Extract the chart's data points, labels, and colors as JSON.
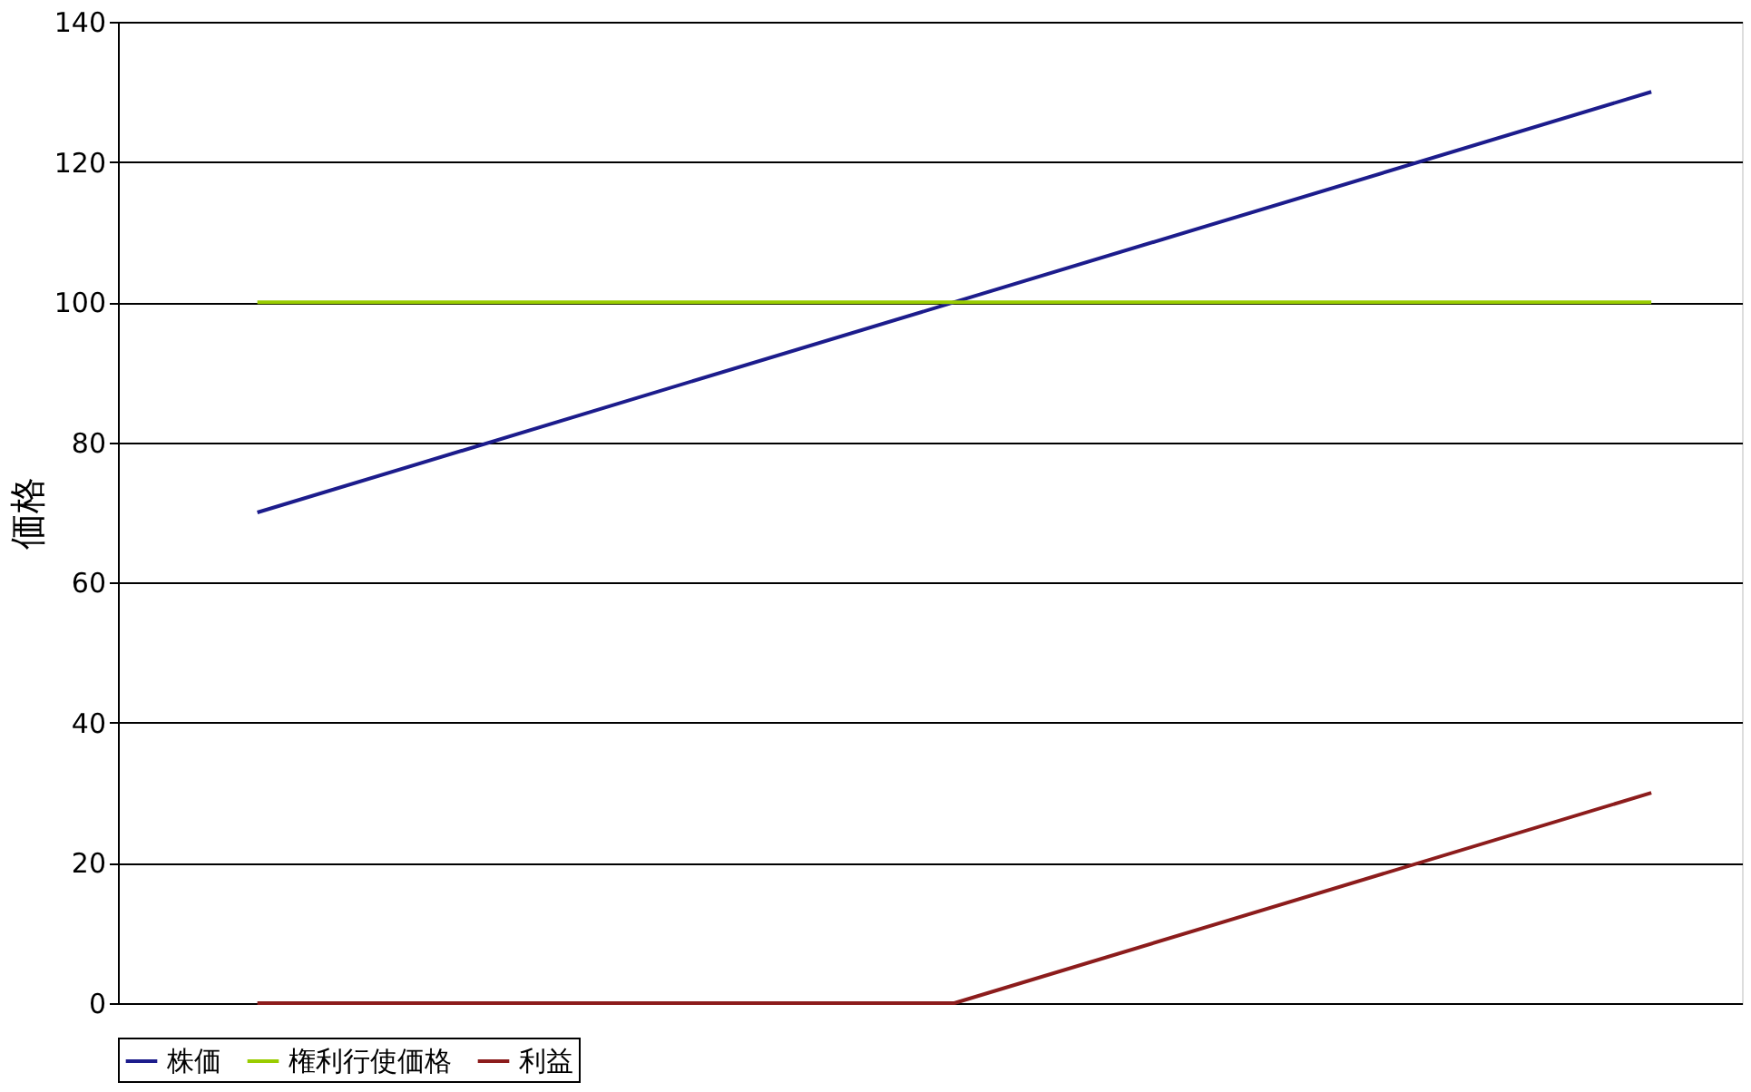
{
  "chart_data": {
    "type": "line",
    "ylabel": "価格",
    "categories": [
      null,
      null,
      null
    ],
    "series": [
      {
        "name": "株価",
        "color": "#1c1c8c",
        "values": [
          70,
          100,
          130
        ]
      },
      {
        "name": "権利行使価格",
        "color": "#99cc00",
        "values": [
          100,
          100,
          100
        ]
      },
      {
        "name": "利益",
        "color": "#8c1c1c",
        "values": [
          0,
          0,
          30
        ]
      }
    ],
    "ylim": [
      0,
      140
    ],
    "yticks": [
      0,
      20,
      40,
      60,
      80,
      100,
      120,
      140
    ],
    "grid": "y",
    "legend": "bottom",
    "tick_labels": "y",
    "marker": "none",
    "line_style": "solid"
  }
}
